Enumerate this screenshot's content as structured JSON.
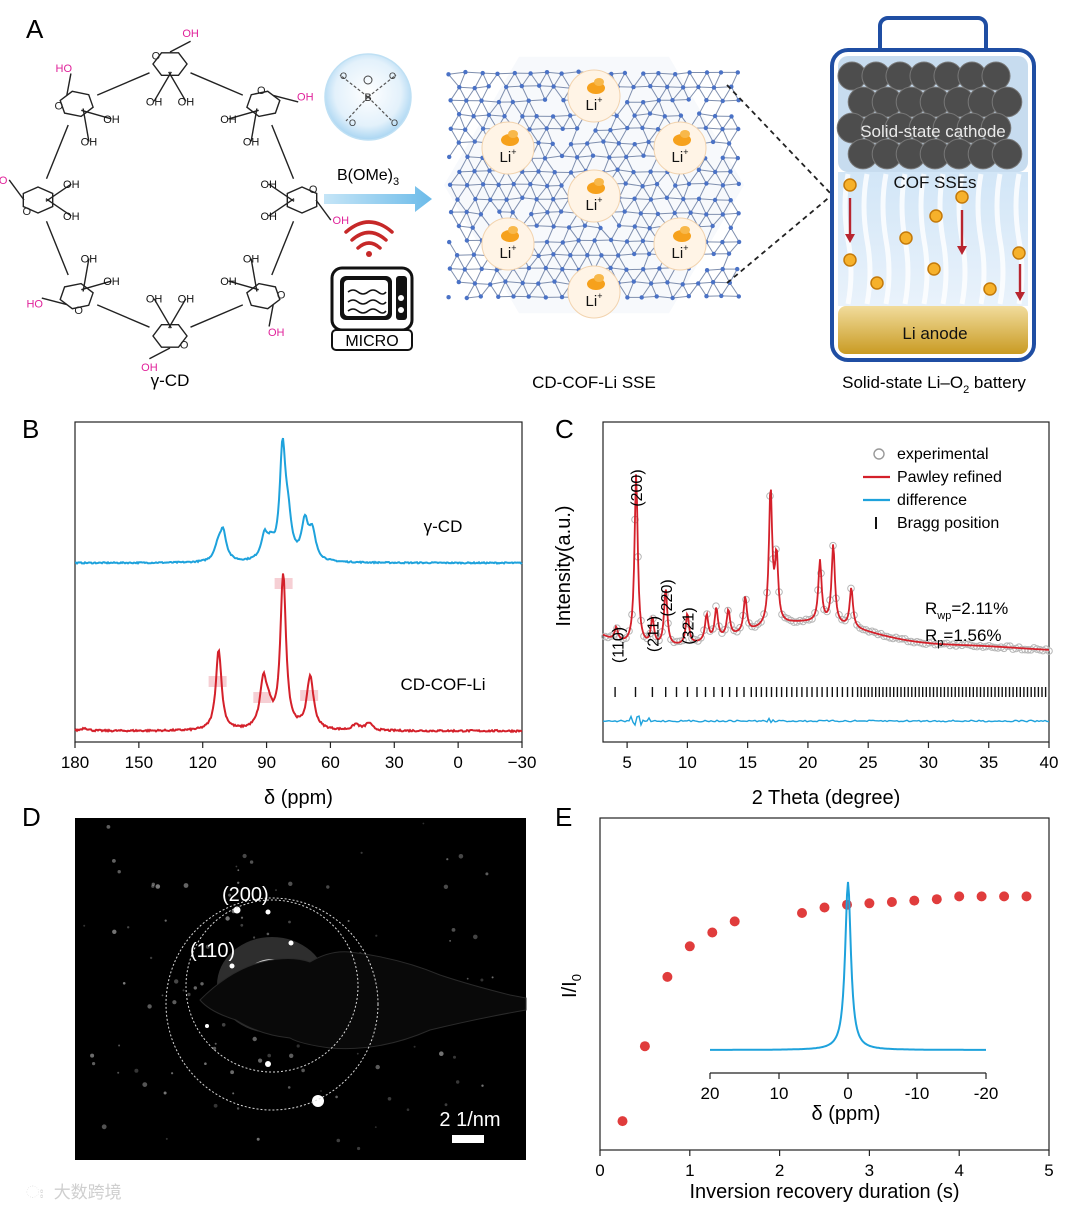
{
  "figure": {
    "panel_labels": [
      "A",
      "B",
      "C",
      "D",
      "E"
    ]
  },
  "panel_a": {
    "cd_label": "γ-CD",
    "reagent": "B(OMe)",
    "reagent_sub": "3",
    "micro_label": "MICRO",
    "cof_label": "CD-COF-Li SSE",
    "li_label": "Li",
    "li_sup": "+",
    "battery": {
      "cathode": "Solid-state cathode",
      "sse": "COF SSEs",
      "anode": "Li anode",
      "caption_pre": "Solid-state Li–O",
      "caption_sub": "2",
      "caption_post": " battery"
    },
    "hydroxyl_label": "OH",
    "ho_label": "HO",
    "ring_o_label": "O",
    "colors": {
      "hydroxyl_pink": "#e0219a",
      "arrow_blue": "#7dc3ea",
      "battery_border": "#1f4ea3"
    }
  },
  "chart_data": [
    {
      "type": "line",
      "panel": "B",
      "title": "",
      "xlabel": "δ (ppm)",
      "ylabel": "",
      "xlim": [
        180,
        -30
      ],
      "xticks": [
        "180",
        "150",
        "120",
        "90",
        "60",
        "30",
        "0",
        "−30"
      ],
      "series": [
        {
          "name": "γ-CD",
          "color": "#1ea2dc",
          "peaks": [
            [
              110.5,
              0.28
            ],
            [
              113,
              0.12
            ],
            [
              91,
              0.22
            ],
            [
              88,
              0.12
            ],
            [
              82.5,
              1.0
            ],
            [
              80,
              0.35
            ],
            [
              72,
              0.35
            ],
            [
              68.5,
              0.25
            ]
          ]
        },
        {
          "name": "CD-COF-Li",
          "color": "#d4202a",
          "peaks": [
            [
              112.5,
              0.55
            ],
            [
              91.5,
              0.32
            ],
            [
              89,
              0.1
            ],
            [
              82.2,
              1.05
            ],
            [
              69.5,
              0.36
            ],
            [
              175.5,
              0.02
            ],
            [
              48,
              0.04
            ],
            [
              42,
              0.05
            ]
          ]
        }
      ],
      "highlight_positions_ppm": [
        113,
        92,
        82,
        70
      ]
    },
    {
      "type": "line",
      "panel": "C",
      "xlabel": "2 Theta (degree)",
      "ylabel": "Intensity(a.u.)",
      "xlim": [
        3,
        40
      ],
      "xticks": [
        "5",
        "10",
        "15",
        "20",
        "25",
        "30",
        "35",
        "40"
      ],
      "legend": [
        "experimental",
        "Pawley refined",
        "difference",
        "Bragg position"
      ],
      "legend_colors": [
        "#999999",
        "#d4202a",
        "#1ea2dc",
        "#111111"
      ],
      "peak_labels": [
        {
          "label": "(110)",
          "x": 4.3
        },
        {
          "label": "(200)",
          "x": 5.8
        },
        {
          "label": "(211)",
          "x": 7.2
        },
        {
          "label": "(220)",
          "x": 8.3
        },
        {
          "label": "(321)",
          "x": 10.1
        }
      ],
      "peaks": [
        [
          4.1,
          0.06
        ],
        [
          5.75,
          0.78
        ],
        [
          7.1,
          0.12
        ],
        [
          8.2,
          0.26
        ],
        [
          10.0,
          0.14
        ],
        [
          11.6,
          0.12
        ],
        [
          12.4,
          0.14
        ],
        [
          13.4,
          0.12
        ],
        [
          14.8,
          0.16
        ],
        [
          16.9,
          0.62
        ],
        [
          17.4,
          0.3
        ],
        [
          21.0,
          0.28
        ],
        [
          22.1,
          0.36
        ],
        [
          23.6,
          0.18
        ]
      ],
      "rwp_label": "R",
      "rwp_sub": "wp",
      "rwp_value": "=2.11%",
      "rp_label": "R",
      "rp_sub": "p",
      "rp_value": "=1.56%"
    },
    {
      "type": "scatter",
      "panel": "E",
      "xlabel": "Inversion recovery duration (s)",
      "ylabel_main": "I/I",
      "ylabel_sub": "0",
      "xlim": [
        0,
        5
      ],
      "ylim": [
        0,
        1
      ],
      "xticks": [
        "0",
        "1",
        "2",
        "3",
        "4",
        "5"
      ],
      "x": [
        0.25,
        0.5,
        0.75,
        1.0,
        1.25,
        1.5,
        2.25,
        2.5,
        2.75,
        3.0,
        3.25,
        3.5,
        3.75,
        4.0,
        4.25,
        4.5,
        4.75
      ],
      "y": [
        0.05,
        0.32,
        0.57,
        0.68,
        0.73,
        0.77,
        0.8,
        0.82,
        0.83,
        0.835,
        0.84,
        0.845,
        0.85,
        0.86,
        0.86,
        0.86,
        0.86
      ],
      "color": "#e03c3c",
      "inset": {
        "xlabel": "δ (ppm)",
        "xticks": [
          "20",
          "10",
          "0",
          "-10",
          "-20"
        ],
        "xlim": [
          20,
          -20
        ],
        "peak_center": 0,
        "color": "#1ea2dc"
      }
    }
  ],
  "panel_d": {
    "ring_labels": [
      "(200)",
      "(110)"
    ],
    "scale_label": "2 1/nm"
  },
  "watermark": "大数跨境"
}
